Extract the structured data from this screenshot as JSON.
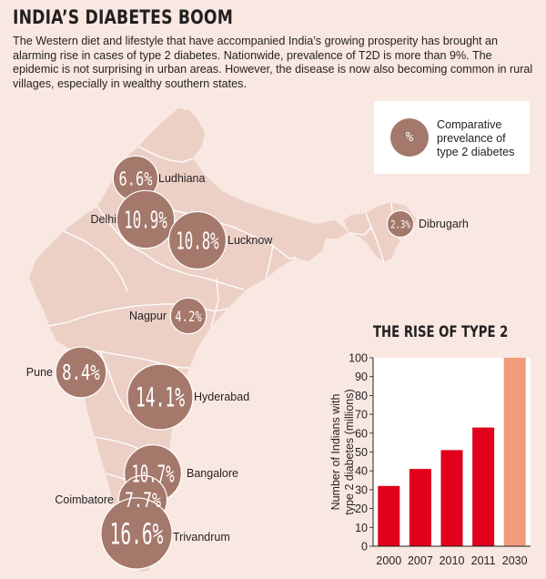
{
  "header": {
    "title": "INDIA’S DIABETES BOOM",
    "intro": "The Western diet and lifestyle that have accompanied India’s growing prosperity has brought an alarming rise in cases of type 2 diabetes. Nationwide, prevalence of T2D is more than 9%. The epidemic is not surprising in urban areas. However, the disease is now also becoming common in rural villages, especially in wealthy southern states."
  },
  "legend": {
    "symbol": "%",
    "text": "Comparative prevelance of type 2 diabetes"
  },
  "cities": [
    {
      "name": "Ludhiana",
      "value": 6.6,
      "label": "6.6%"
    },
    {
      "name": "Delhi",
      "value": 10.9,
      "label": "10.9%"
    },
    {
      "name": "Lucknow",
      "value": 10.8,
      "label": "10.8%"
    },
    {
      "name": "Dibrugarh",
      "value": 2.3,
      "label": "2.3%"
    },
    {
      "name": "Nagpur",
      "value": 4.2,
      "label": "4.2%"
    },
    {
      "name": "Pune",
      "value": 8.4,
      "label": "8.4%"
    },
    {
      "name": "Hyderabad",
      "value": 14.1,
      "label": "14.1%"
    },
    {
      "name": "Bangalore",
      "value": 10.7,
      "label": "10.7%"
    },
    {
      "name": "Coimbatore",
      "value": 7.7,
      "label": "7.7%"
    },
    {
      "name": "Trivandrum",
      "value": 16.6,
      "label": "16.6%"
    }
  ],
  "colors": {
    "background": "#f9e8e2",
    "land": "#ecd0c6",
    "border": "#ffffff",
    "bubble": "#a5786c",
    "bar": "#e0001b",
    "bar_projected": "#f29a7c"
  },
  "chart_data": {
    "type": "bar",
    "title": "THE RISE OF TYPE 2",
    "ylabel": "Number of Indians with type 2 diabetes (millions)",
    "xlabel": "",
    "categories": [
      "2000",
      "2007",
      "2010",
      "2011",
      "2030"
    ],
    "values": [
      32,
      41,
      51,
      63,
      100
    ],
    "projected": [
      false,
      false,
      false,
      false,
      true
    ],
    "ylim": [
      0,
      100
    ],
    "yticks": [
      0,
      10,
      20,
      30,
      40,
      50,
      60,
      70,
      80,
      90,
      100
    ],
    "grid": false
  }
}
